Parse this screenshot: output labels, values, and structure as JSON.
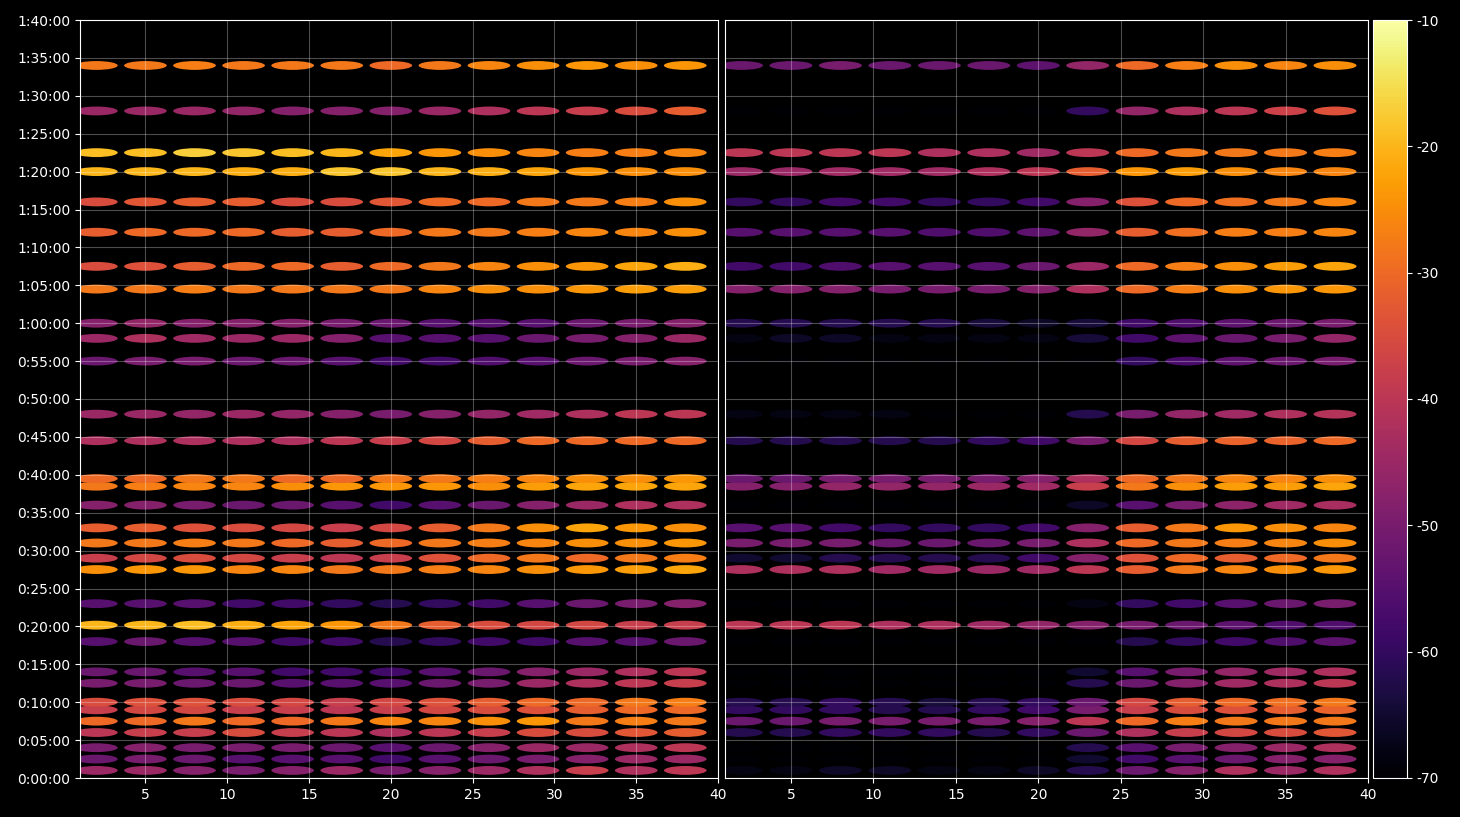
{
  "chart_data": [
    {
      "type": "heatmap",
      "color": "inferno",
      "grid": true,
      "color_range": [
        -70,
        -10
      ],
      "color_ticks": [
        -70,
        -60,
        -50,
        -40,
        -30,
        -20,
        -10
      ],
      "xlim": [
        1,
        40
      ],
      "xticks": [
        5,
        10,
        15,
        20,
        25,
        30,
        35,
        40
      ],
      "ylim": [
        0,
        6000
      ],
      "yticks": [
        {
          "value": 0,
          "label": "0:00:00"
        },
        {
          "value": 300,
          "label": "0:05:00"
        },
        {
          "value": 600,
          "label": "0:10:00"
        },
        {
          "value": 900,
          "label": "0:15:00"
        },
        {
          "value": 1200,
          "label": "0:20:00"
        },
        {
          "value": 1500,
          "label": "0:25:00"
        },
        {
          "value": 1800,
          "label": "0:30:00"
        },
        {
          "value": 2100,
          "label": "0:35:00"
        },
        {
          "value": 2400,
          "label": "0:40:00"
        },
        {
          "value": 2700,
          "label": "0:45:00"
        },
        {
          "value": 3000,
          "label": "0:50:00"
        },
        {
          "value": 3300,
          "label": "0:55:00"
        },
        {
          "value": 3600,
          "label": "1:00:00"
        },
        {
          "value": 3900,
          "label": "1:05:00"
        },
        {
          "value": 4200,
          "label": "1:10:00"
        },
        {
          "value": 4500,
          "label": "1:15:00"
        },
        {
          "value": 4800,
          "label": "1:20:00"
        },
        {
          "value": 5100,
          "label": "1:25:00"
        },
        {
          "value": 5400,
          "label": "1:30:00"
        },
        {
          "value": 5700,
          "label": "1:35:00"
        },
        {
          "value": 6000,
          "label": "1:40:00"
        }
      ],
      "x": [
        2,
        5,
        8,
        11,
        14,
        17,
        20,
        23,
        26,
        29,
        32,
        35,
        38
      ],
      "y": [
        60,
        150,
        240,
        360,
        450,
        540,
        600,
        750,
        840,
        1080,
        1210,
        1380,
        1650,
        1740,
        1860,
        1980,
        2160,
        2310,
        2370,
        2670,
        2880,
        3300,
        3480,
        3600,
        3870,
        4050,
        4320,
        4560,
        4800,
        4950,
        5280,
        5640
      ],
      "cells": [
        [
          -45,
          -45,
          -48,
          -50,
          -48,
          -45,
          -50,
          -48,
          -45,
          -42,
          -38,
          -42,
          -40
        ],
        [
          -52,
          -50,
          -52,
          -55,
          -55,
          -55,
          -58,
          -55,
          -52,
          -50,
          -48,
          -45,
          -45
        ],
        [
          -50,
          -48,
          -50,
          -50,
          -50,
          -52,
          -55,
          -52,
          -48,
          -45,
          -45,
          -42,
          -40
        ],
        [
          -40,
          -38,
          -38,
          -35,
          -38,
          -40,
          -42,
          -40,
          -38,
          -35,
          -35,
          -33,
          -32
        ],
        [
          -30,
          -30,
          -28,
          -30,
          -30,
          -28,
          -26,
          -26,
          -25,
          -24,
          -28,
          -27,
          -28
        ],
        [
          -38,
          -36,
          -36,
          -38,
          -38,
          -40,
          -38,
          -36,
          -35,
          -34,
          -32,
          -30,
          -30
        ],
        [
          -35,
          -34,
          -34,
          -35,
          -36,
          -38,
          -36,
          -34,
          -32,
          -30,
          -30,
          -28,
          -27
        ],
        [
          -50,
          -50,
          -52,
          -52,
          -55,
          -55,
          -55,
          -52,
          -50,
          -45,
          -42,
          -40,
          -38
        ],
        [
          -52,
          -52,
          -55,
          -55,
          -58,
          -58,
          -58,
          -55,
          -52,
          -48,
          -45,
          -42,
          -40
        ],
        [
          -55,
          -52,
          -55,
          -55,
          -58,
          -58,
          -62,
          -60,
          -58,
          -58,
          -55,
          -55,
          -52
        ],
        [
          -20,
          -20,
          -19,
          -21,
          -22,
          -24,
          -28,
          -32,
          -35,
          -36,
          -36,
          -38,
          -38
        ],
        [
          -55,
          -55,
          -55,
          -58,
          -58,
          -60,
          -62,
          -60,
          -58,
          -55,
          -52,
          -50,
          -48
        ],
        [
          -25,
          -24,
          -24,
          -26,
          -26,
          -28,
          -28,
          -27,
          -26,
          -25,
          -24,
          -23,
          -22
        ],
        [
          -38,
          -36,
          -35,
          -36,
          -38,
          -40,
          -38,
          -34,
          -30,
          -28,
          -30,
          -28,
          -27
        ],
        [
          -28,
          -28,
          -27,
          -28,
          -30,
          -32,
          -30,
          -28,
          -27,
          -26,
          -25,
          -25,
          -24
        ],
        [
          -32,
          -32,
          -34,
          -35,
          -36,
          -38,
          -36,
          -32,
          -28,
          -25,
          -22,
          -24,
          -25
        ],
        [
          -48,
          -48,
          -50,
          -52,
          -52,
          -55,
          -58,
          -55,
          -52,
          -48,
          -45,
          -42,
          -42
        ],
        [
          -28,
          -27,
          -26,
          -26,
          -25,
          -24,
          -24,
          -24,
          -25,
          -23,
          -22,
          -22,
          -22
        ],
        [
          -30,
          -30,
          -28,
          -28,
          -30,
          -30,
          -28,
          -28,
          -27,
          -26,
          -25,
          -25,
          -24
        ],
        [
          -42,
          -42,
          -42,
          -42,
          -42,
          -40,
          -38,
          -36,
          -32,
          -30,
          -30,
          -30,
          -30
        ],
        [
          -45,
          -45,
          -46,
          -45,
          -46,
          -48,
          -50,
          -48,
          -46,
          -44,
          -42,
          -40,
          -40
        ],
        [
          -52,
          -50,
          -50,
          -52,
          -52,
          -55,
          -58,
          -58,
          -56,
          -55,
          -52,
          -50,
          -48
        ],
        [
          -45,
          -42,
          -44,
          -45,
          -45,
          -48,
          -55,
          -55,
          -55,
          -52,
          -50,
          -48,
          -45
        ],
        [
          -48,
          -46,
          -48,
          -48,
          -48,
          -50,
          -52,
          -55,
          -55,
          -55,
          -52,
          -50,
          -48
        ],
        [
          -28,
          -28,
          -27,
          -28,
          -28,
          -28,
          -28,
          -26,
          -25,
          -25,
          -24,
          -23,
          -23
        ],
        [
          -35,
          -34,
          -32,
          -30,
          -30,
          -32,
          -30,
          -28,
          -26,
          -25,
          -24,
          -22,
          -21
        ],
        [
          -32,
          -30,
          -30,
          -30,
          -32,
          -32,
          -30,
          -28,
          -28,
          -27,
          -26,
          -26,
          -25
        ],
        [
          -35,
          -33,
          -32,
          -32,
          -35,
          -35,
          -33,
          -30,
          -30,
          -28,
          -28,
          -27,
          -25
        ],
        [
          -20,
          -20,
          -20,
          -21,
          -21,
          -18,
          -18,
          -20,
          -21,
          -22,
          -24,
          -25,
          -25
        ],
        [
          -19,
          -19,
          -17,
          -18,
          -19,
          -20,
          -22,
          -24,
          -25,
          -26,
          -27,
          -27,
          -26
        ],
        [
          -45,
          -45,
          -45,
          -46,
          -48,
          -48,
          -48,
          -45,
          -42,
          -40,
          -38,
          -35,
          -32
        ],
        [
          -28,
          -28,
          -27,
          -28,
          -28,
          -28,
          -30,
          -28,
          -26,
          -25,
          -24,
          -25,
          -24
        ]
      ]
    },
    {
      "type": "heatmap",
      "color": "inferno",
      "grid": true,
      "tick_labels": "x",
      "color_range": [
        -70,
        -10
      ],
      "color_ticks": [
        -70,
        -60,
        -50,
        -40,
        -30,
        -20,
        -10
      ],
      "xlim": [
        1,
        40
      ],
      "xticks": [
        5,
        10,
        15,
        20,
        25,
        30,
        35,
        40
      ],
      "ylim": [
        0,
        6000
      ],
      "yticks": [
        0,
        300,
        600,
        900,
        1200,
        1500,
        1800,
        2100,
        2400,
        2700,
        3000,
        3300,
        3600,
        3900,
        4200,
        4500,
        4800,
        5100,
        5400,
        5700,
        6000
      ],
      "x": [
        2,
        5,
        8,
        11,
        14,
        17,
        20,
        23,
        26,
        29,
        32,
        35,
        38
      ],
      "y": [
        60,
        150,
        240,
        360,
        450,
        540,
        600,
        750,
        840,
        1080,
        1210,
        1380,
        1650,
        1740,
        1860,
        1980,
        2160,
        2310,
        2370,
        2670,
        2880,
        3300,
        3480,
        3600,
        3870,
        4050,
        4320,
        4560,
        4800,
        4950,
        5280,
        5640
      ],
      "cells": [
        [
          -68,
          -68,
          -66,
          -66,
          -68,
          -68,
          -66,
          -62,
          -52,
          -48,
          -42,
          -45,
          -42
        ],
        [
          -75,
          -75,
          -75,
          -75,
          -75,
          -75,
          -72,
          -65,
          -58,
          -55,
          -52,
          -48,
          -48
        ],
        [
          -70,
          -70,
          -72,
          -72,
          -72,
          -72,
          -70,
          -62,
          -55,
          -50,
          -48,
          -45,
          -42
        ],
        [
          -62,
          -62,
          -60,
          -60,
          -60,
          -62,
          -60,
          -52,
          -42,
          -38,
          -36,
          -35,
          -33
        ],
        [
          -52,
          -52,
          -50,
          -50,
          -50,
          -50,
          -48,
          -40,
          -30,
          -27,
          -28,
          -28,
          -28
        ],
        [
          -60,
          -60,
          -60,
          -62,
          -62,
          -60,
          -58,
          -50,
          -38,
          -35,
          -34,
          -32,
          -31
        ],
        [
          -62,
          -62,
          -60,
          -62,
          -64,
          -62,
          -60,
          -52,
          -36,
          -32,
          -30,
          -29,
          -28
        ],
        [
          -75,
          -75,
          -75,
          -75,
          -75,
          -75,
          -72,
          -62,
          -52,
          -48,
          -44,
          -42,
          -40
        ],
        [
          -75,
          -75,
          -75,
          -75,
          -75,
          -75,
          -75,
          -65,
          -55,
          -50,
          -46,
          -44,
          -42
        ],
        [
          -75,
          -75,
          -75,
          -75,
          -75,
          -75,
          -75,
          -70,
          -62,
          -60,
          -58,
          -56,
          -54
        ],
        [
          -40,
          -40,
          -40,
          -42,
          -42,
          -44,
          -46,
          -48,
          -50,
          -52,
          -54,
          -56,
          -56
        ],
        [
          -75,
          -75,
          -75,
          -75,
          -75,
          -75,
          -75,
          -68,
          -60,
          -58,
          -55,
          -52,
          -50
        ],
        [
          -42,
          -42,
          -42,
          -44,
          -44,
          -45,
          -44,
          -40,
          -32,
          -28,
          -26,
          -25,
          -24
        ],
        [
          -65,
          -65,
          -62,
          -62,
          -62,
          -62,
          -58,
          -48,
          -34,
          -30,
          -32,
          -30,
          -28
        ],
        [
          -50,
          -50,
          -50,
          -52,
          -52,
          -52,
          -50,
          -42,
          -30,
          -28,
          -27,
          -26,
          -25
        ],
        [
          -55,
          -55,
          -58,
          -60,
          -60,
          -60,
          -58,
          -48,
          -32,
          -28,
          -24,
          -25,
          -26
        ],
        [
          -75,
          -75,
          -75,
          -75,
          -75,
          -75,
          -75,
          -66,
          -55,
          -50,
          -47,
          -44,
          -43
        ],
        [
          -48,
          -48,
          -46,
          -46,
          -46,
          -45,
          -44,
          -38,
          -28,
          -25,
          -23,
          -23,
          -22
        ],
        [
          -52,
          -52,
          -50,
          -50,
          -50,
          -50,
          -48,
          -42,
          -30,
          -28,
          -26,
          -26,
          -25
        ],
        [
          -62,
          -62,
          -62,
          -62,
          -62,
          -60,
          -58,
          -50,
          -36,
          -32,
          -31,
          -31,
          -30
        ],
        [
          -68,
          -68,
          -68,
          -68,
          -70,
          -70,
          -70,
          -62,
          -50,
          -46,
          -44,
          -42,
          -41
        ],
        [
          -75,
          -75,
          -75,
          -75,
          -75,
          -75,
          -75,
          -70,
          -60,
          -57,
          -54,
          -52,
          -50
        ],
        [
          -68,
          -66,
          -66,
          -68,
          -68,
          -68,
          -68,
          -64,
          -58,
          -54,
          -52,
          -50,
          -46
        ],
        [
          -62,
          -62,
          -62,
          -62,
          -62,
          -64,
          -66,
          -64,
          -58,
          -56,
          -54,
          -52,
          -50
        ],
        [
          -48,
          -48,
          -48,
          -50,
          -50,
          -50,
          -48,
          -42,
          -30,
          -27,
          -25,
          -24,
          -24
        ],
        [
          -58,
          -58,
          -56,
          -55,
          -55,
          -55,
          -52,
          -45,
          -30,
          -27,
          -25,
          -23,
          -22
        ],
        [
          -55,
          -55,
          -55,
          -55,
          -56,
          -56,
          -54,
          -46,
          -32,
          -29,
          -27,
          -27,
          -26
        ],
        [
          -60,
          -60,
          -58,
          -58,
          -60,
          -60,
          -58,
          -48,
          -34,
          -30,
          -29,
          -28,
          -26
        ],
        [
          -45,
          -45,
          -44,
          -44,
          -44,
          -42,
          -40,
          -32,
          -24,
          -23,
          -25,
          -26,
          -26
        ],
        [
          -40,
          -40,
          -40,
          -40,
          -42,
          -42,
          -44,
          -40,
          -30,
          -28,
          -28,
          -28,
          -27
        ],
        [
          -70,
          -70,
          -70,
          -70,
          -72,
          -72,
          -70,
          -60,
          -46,
          -42,
          -40,
          -37,
          -34
        ],
        [
          -52,
          -52,
          -50,
          -52,
          -52,
          -52,
          -54,
          -46,
          -30,
          -27,
          -25,
          -26,
          -25
        ]
      ]
    }
  ]
}
